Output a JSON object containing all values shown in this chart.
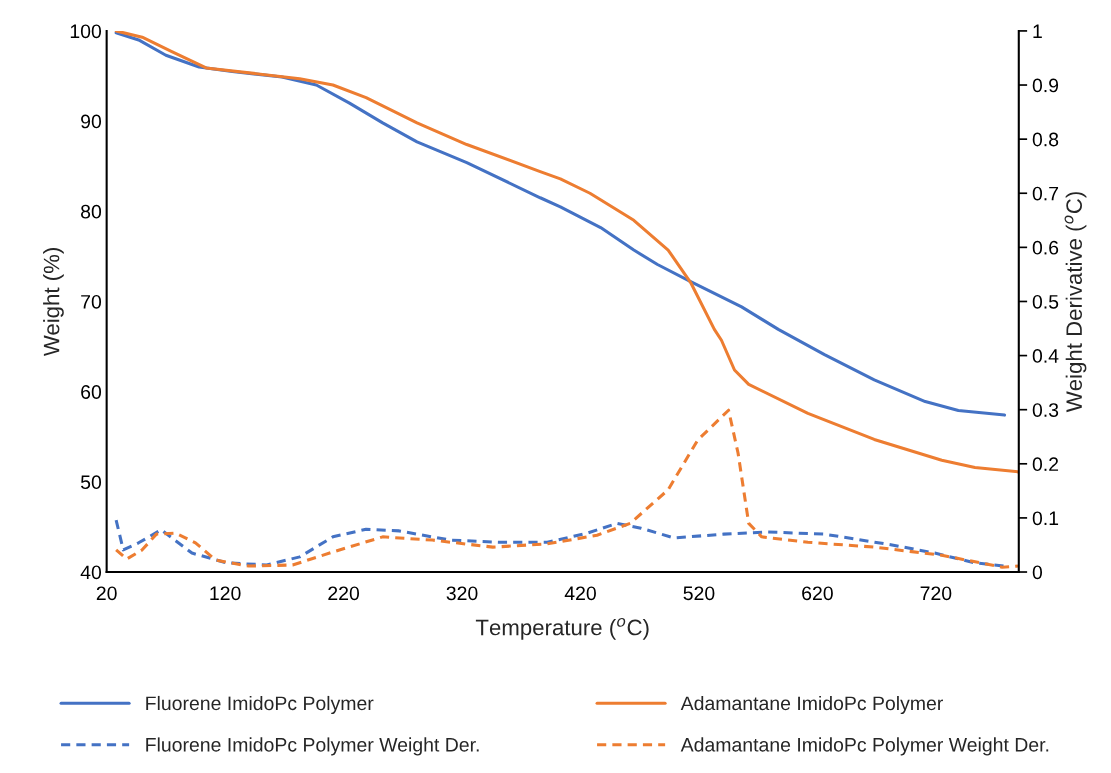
{
  "chart_data": {
    "type": "line",
    "xlabel": "Temperature ($^{o}$C)",
    "ylabel": "Weight (%)",
    "y2label": "Weight Derivative ($^{o}$C)",
    "xlim": [
      20,
      790
    ],
    "xticks": [
      20,
      120,
      220,
      320,
      420,
      520,
      620,
      720
    ],
    "ylim": [
      40,
      100
    ],
    "yticks": [
      40,
      50,
      60,
      70,
      80,
      90,
      100
    ],
    "y2lim": [
      0,
      1
    ],
    "y2ticks": [
      0,
      0.1,
      0.2,
      0.3,
      0.4,
      0.5,
      0.6,
      0.7,
      0.8,
      0.9,
      1
    ],
    "grid": false,
    "legend": "bottom",
    "series": [
      {
        "name": "Fluorene ImidoPc Polymer",
        "color": "#4472c4",
        "line_style": "solid",
        "x": [
          28,
          47,
          70,
          98,
          126,
          168,
          197,
          225,
          253,
          282,
          324,
          386,
          403,
          437,
          465,
          485,
          513,
          556,
          587,
          626,
          668,
          711,
          739,
          778
        ],
        "values": [
          99.8,
          99.0,
          97.3,
          96.0,
          95.5,
          94.9,
          94.0,
          92.0,
          89.8,
          87.7,
          85.4,
          81.5,
          80.5,
          78.2,
          75.7,
          74.1,
          72.2,
          69.4,
          66.9,
          64.1,
          61.3,
          58.9,
          57.9,
          57.4
        ]
      },
      {
        "name": "Adamantane ImidoPc Polymer",
        "color": "#ed7d31",
        "line_style": "solid",
        "x": [
          28,
          50,
          75,
          104,
          183,
          211,
          239,
          282,
          324,
          386,
          403,
          428,
          465,
          494,
          513,
          533,
          539,
          550,
          562,
          612,
          668,
          725,
          753,
          790
        ],
        "values": [
          100,
          99.3,
          97.7,
          95.9,
          94.7,
          94.0,
          92.6,
          89.8,
          87.4,
          84.4,
          83.6,
          82.0,
          79.0,
          75.7,
          72.1,
          66.9,
          65.7,
          62.4,
          60.8,
          57.6,
          54.7,
          52.4,
          51.6,
          51.1
        ]
      },
      {
        "name": "Fluorene ImidoPc Polymer Weight Der.",
        "color": "#4472c4",
        "line_style": "dashed",
        "axis": "y2",
        "x": [
          28,
          34,
          47,
          66,
          92,
          121,
          155,
          183,
          211,
          239,
          267,
          310,
          352,
          392,
          426,
          451,
          471,
          499,
          541,
          578,
          626,
          683,
          719,
          753,
          778
        ],
        "values": [
          0.096,
          0.041,
          0.054,
          0.078,
          0.035,
          0.017,
          0.013,
          0.028,
          0.065,
          0.079,
          0.076,
          0.059,
          0.055,
          0.055,
          0.072,
          0.09,
          0.081,
          0.063,
          0.07,
          0.074,
          0.07,
          0.05,
          0.035,
          0.017,
          0.011
        ]
      },
      {
        "name": "Adamantane ImidoPc Polymer Weight Der.",
        "color": "#ed7d31",
        "line_style": "dashed",
        "axis": "y2",
        "x": [
          28,
          37,
          50,
          62,
          78,
          95,
          112,
          140,
          177,
          211,
          253,
          295,
          346,
          392,
          434,
          462,
          494,
          519,
          545,
          553,
          562,
          573,
          612,
          668,
          725,
          776,
          790
        ],
        "values": [
          0.041,
          0.024,
          0.041,
          0.07,
          0.072,
          0.054,
          0.022,
          0.011,
          0.013,
          0.037,
          0.065,
          0.059,
          0.046,
          0.052,
          0.068,
          0.09,
          0.152,
          0.244,
          0.299,
          0.22,
          0.09,
          0.065,
          0.055,
          0.046,
          0.031,
          0.009,
          0.011
        ]
      }
    ]
  }
}
